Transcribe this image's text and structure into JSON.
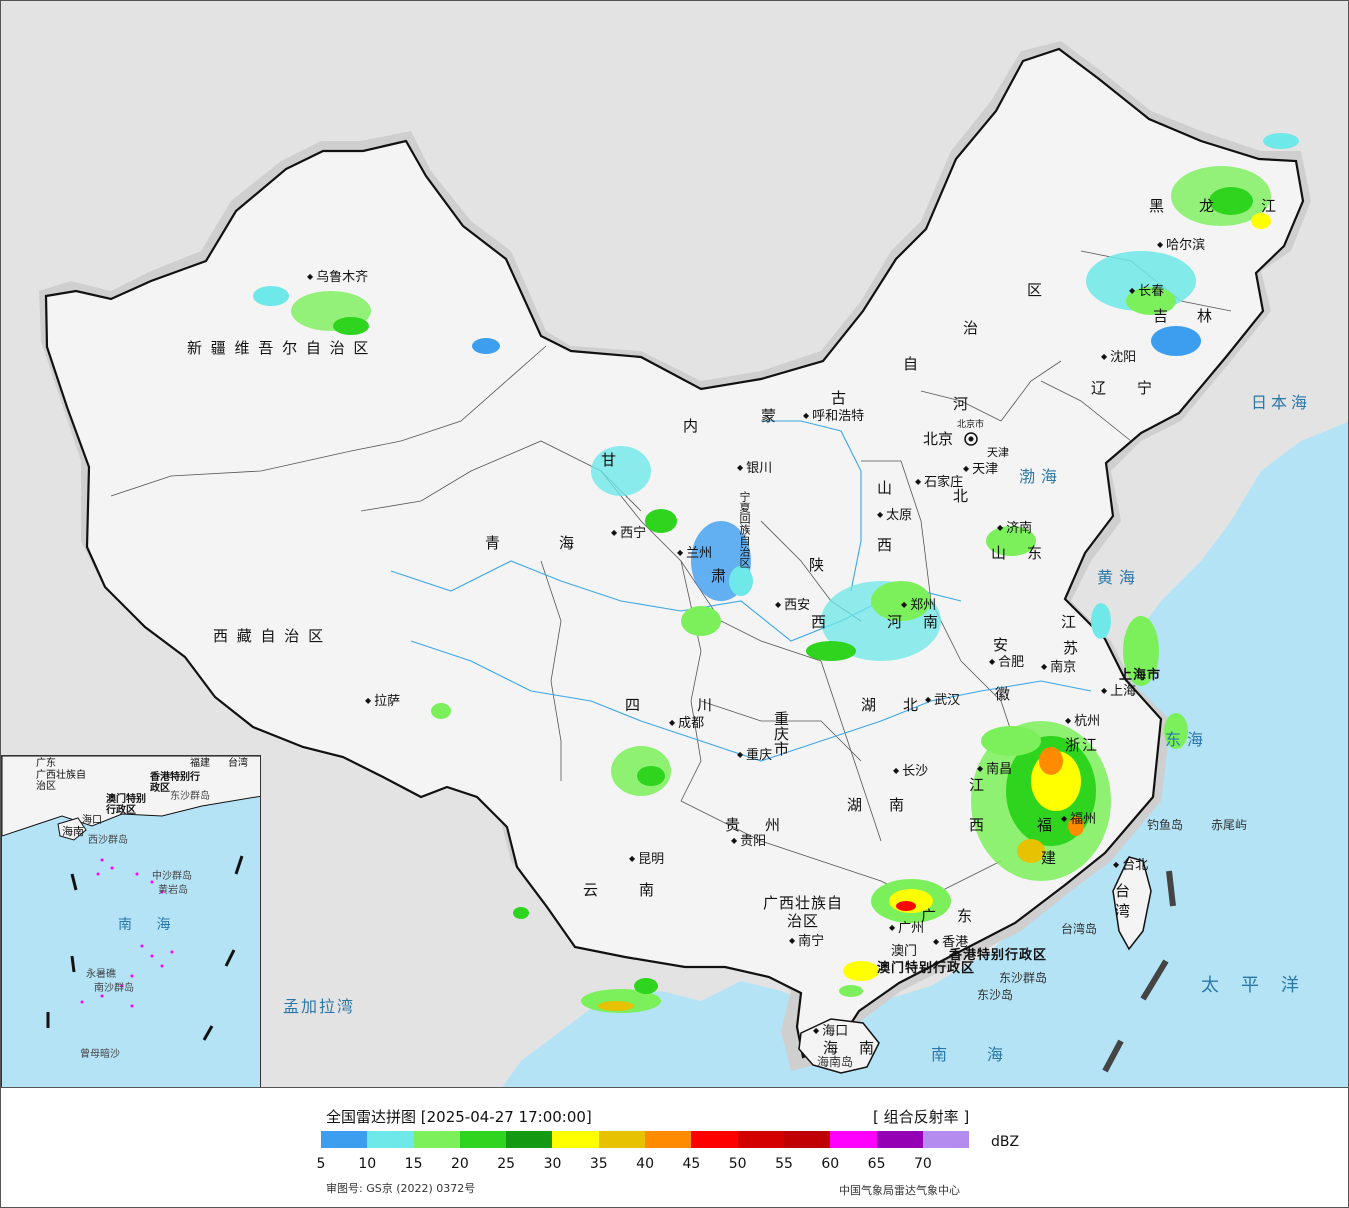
{
  "title": "全国雷达拼图 [2025-04-27 17:00:00]",
  "product": "[ 组合反射率 ]",
  "unit": "dBZ",
  "approval_no": "审图号: GS京 (2022) 0372号",
  "organization": "中国气象局雷达气象中心",
  "legend": {
    "colors": [
      "#3d9ef0",
      "#6ee8e8",
      "#7bf05a",
      "#2fd41e",
      "#139a12",
      "#ffff00",
      "#e6c200",
      "#ff8c00",
      "#ff0000",
      "#d40000",
      "#c00000",
      "#ff00ff",
      "#9400b4",
      "#b48cf0"
    ],
    "ticks": [
      "5",
      "10",
      "15",
      "20",
      "25",
      "30",
      "35",
      "40",
      "45",
      "50",
      "55",
      "60",
      "65",
      "70"
    ]
  },
  "provinces": {
    "xinjiang": "新 疆 维 吾 尔 自 治 区",
    "xizang": "西 藏 自 治 区",
    "qinghai_1": "青",
    "qinghai_2": "海",
    "gansu_1": "甘",
    "gansu_2": "肃",
    "neimenggu_1": "内",
    "neimenggu_2": "蒙",
    "neimenggu_3": "古",
    "neimenggu_4": "自",
    "neimenggu_5": "治",
    "neimenggu_6": "区",
    "heilongjiang_1": "黑",
    "heilongjiang_2": "龙",
    "heilongjiang_3": "江",
    "jilin_1": "吉",
    "jilin_2": "林",
    "liaoning_1": "辽",
    "liaoning_2": "宁",
    "hebei_1": "河",
    "hebei_2": "北",
    "shanxi_1": "山",
    "shanxi_2": "西",
    "shaanxi_1": "陕",
    "shaanxi_2": "西",
    "shandong_1": "山",
    "shandong_2": "东",
    "henan_1": "河",
    "henan_2": "南",
    "jiangsu_1": "江",
    "jiangsu_2": "苏",
    "anhui_1": "安",
    "anhui_2": "徽",
    "hubei_1": "湖",
    "hubei_2": "北",
    "hunan_1": "湖",
    "hunan_2": "南",
    "sichuan_1": "四",
    "sichuan_2": "川",
    "chongqing": "重庆市",
    "guizhou_1": "贵",
    "guizhou_2": "州",
    "yunnan_1": "云",
    "yunnan_2": "南",
    "guangxi": "广西壮族自治区",
    "guangdong_1": "广",
    "guangdong_2": "东",
    "jiangxi_1": "江",
    "jiangxi_2": "西",
    "zhejiang": "浙江",
    "fujian_1": "福",
    "fujian_2": "建",
    "taiwan_1": "台",
    "taiwan_2": "湾",
    "hainan_1": "海",
    "hainan_2": "南",
    "ningxia": "宁夏回族自治区",
    "shanghai": "上海市",
    "tianjin": "天津",
    "beijing_city": "北京市",
    "hongkong": "香港特别行政区",
    "macau": "澳门特别行政区"
  },
  "cities": {
    "urumqi": "乌鲁木齐",
    "lhasa": "拉萨",
    "xining": "西宁",
    "lanzhou": "兰州",
    "yinchuan": "银川",
    "huhehaote": "呼和浩特",
    "beijing": "北京",
    "tianjin": "天津",
    "shijiazhuang": "石家庄",
    "taiyuan": "太原",
    "jinan": "济南",
    "zhengzhou": "郑州",
    "xian": "西安",
    "chengdu": "成都",
    "chongqing": "重庆",
    "wuhan": "武汉",
    "hefei": "合肥",
    "nanjing": "南京",
    "shanghai": "上海",
    "hangzhou": "杭州",
    "nanchang": "南昌",
    "changsha": "长沙",
    "guiyang": "贵阳",
    "kunming": "昆明",
    "nanning": "南宁",
    "guangzhou": "广州",
    "hongkong": "香港",
    "macau": "澳门",
    "fuzhou": "福州",
    "taibei": "台北",
    "haikou": "海口",
    "shenyang": "沈阳",
    "changchun": "长春",
    "harbin": "哈尔滨"
  },
  "seas": {
    "bohai": "渤海",
    "huanghai": "黄海",
    "donghai": "东海",
    "nanhai": "南海",
    "taipingyang": "太平洋",
    "ribenhai": "日本海",
    "mengjialawan": "孟加拉湾"
  },
  "islands": {
    "diaoyudao": "钓鱼岛",
    "chiweiyu": "赤尾屿",
    "taiwandao": "台湾岛",
    "dongshaqundao": "东沙群岛",
    "dongshadao": "东沙岛",
    "hainandao": "海南岛"
  },
  "inset": {
    "guangdong": "广东",
    "fujian": "福建",
    "taiwan": "台湾",
    "guangxi": "广西壮族自治区",
    "hongkong": "香港特别行政区",
    "macau": "澳门特别行政区",
    "hainan": "海南",
    "haikou": "海口",
    "dongsha": "东沙群岛",
    "xisha": "西沙群岛",
    "zhongsha": "中沙群岛",
    "huangyandao": "黄岩岛",
    "nansha": "南沙群岛",
    "yongshujiao": "永暑礁",
    "zengmuansha": "曾母暗沙",
    "nanhai": "南 海"
  }
}
